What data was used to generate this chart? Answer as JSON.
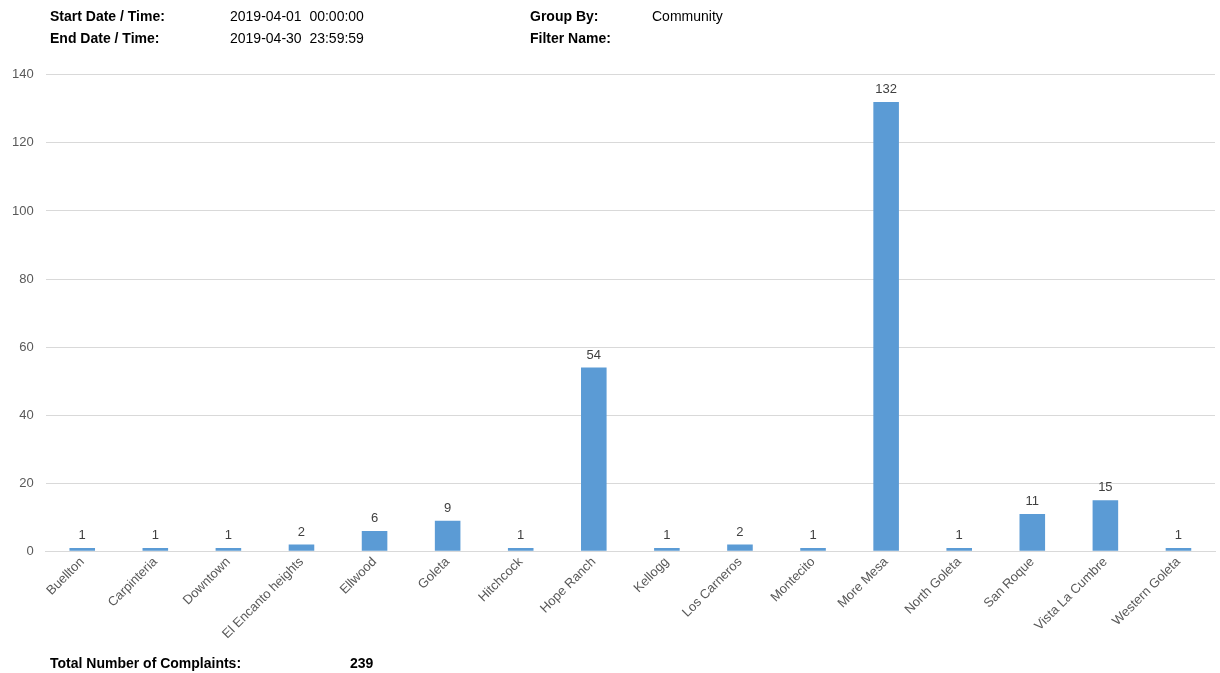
{
  "chart_data": {
    "type": "bar",
    "categories": [
      "Buellton",
      "Carpinteria",
      "Downtown",
      "El Encanto heights",
      "Ellwood",
      "Goleta",
      "Hitchcock",
      "Hope Ranch",
      "Kellogg",
      "Los Carneros",
      "Montecito",
      "More Mesa",
      "North Goleta",
      "San Roque",
      "Vista La Cumbre",
      "Western Goleta"
    ],
    "values": [
      1,
      1,
      1,
      2,
      6,
      9,
      1,
      54,
      1,
      2,
      1,
      132,
      1,
      11,
      15,
      1
    ],
    "color": "#5b9bd5",
    "ylim": [
      0,
      140
    ],
    "yticks": [
      0,
      20,
      40,
      60,
      80,
      100,
      120,
      140
    ],
    "grid": "y",
    "legend": false,
    "data_labels": true,
    "annotations": [
      "Start Date / Time:",
      "2019-04-01  00:00:00",
      "Group By:",
      "Community",
      "End Date / Time:",
      "2019-04-30  23:59:59",
      "Filter Name:",
      "Total Number of Complaints:",
      "239"
    ]
  }
}
